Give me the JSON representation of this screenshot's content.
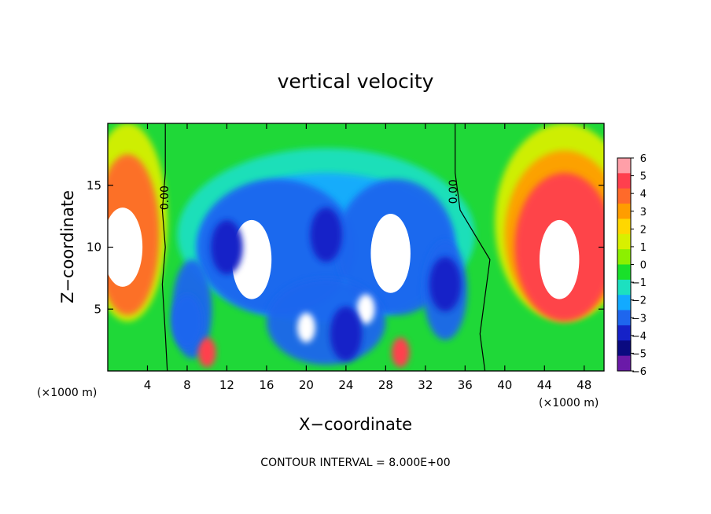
{
  "chart_data": {
    "type": "heatmap",
    "title": "vertical velocity",
    "xlabel": "X−coordinate",
    "ylabel": "Z−coordinate",
    "x_unit": "(×1000 m)",
    "y_unit": "(×1000 m)",
    "x_ticks": [
      4,
      8,
      12,
      16,
      20,
      24,
      28,
      32,
      36,
      40,
      44,
      48
    ],
    "y_ticks": [
      5,
      10,
      15
    ],
    "xlim": [
      0,
      50
    ],
    "ylim": [
      0,
      20
    ],
    "colorbar": {
      "levels": [
        "6",
        "5",
        "4",
        "3",
        "2",
        "1",
        "0",
        "−1",
        "−2",
        "−3",
        "−4",
        "−5",
        "−6"
      ],
      "colors": [
        "#ff9fa8",
        "#ff3f4e",
        "#ff6a2a",
        "#ff9d00",
        "#ffd700",
        "#d8f000",
        "#8cf000",
        "#19e02a",
        "#1ce0c0",
        "#12aaff",
        "#1e66ee",
        "#1522c8",
        "#0a0a80",
        "#6a1aa8"
      ]
    },
    "contour_labels": [
      "0.00",
      "0.00"
    ],
    "contour_interval_text": "CONTOUR INTERVAL = 8.000E+00",
    "features": [
      {
        "kind": "updraft",
        "x": 1.5,
        "z": 10,
        "value": 8
      },
      {
        "kind": "updraft",
        "x": 14.5,
        "z": 9,
        "value": 8
      },
      {
        "kind": "updraft",
        "x": 28.5,
        "z": 9.5,
        "value": 8
      },
      {
        "kind": "updraft",
        "x": 45.5,
        "z": 9,
        "value": 8
      },
      {
        "kind": "updraft",
        "x": 20,
        "z": 3.5,
        "value": 7
      },
      {
        "kind": "updraft",
        "x": 26,
        "z": 5,
        "value": 7
      },
      {
        "kind": "updraft",
        "x": 10,
        "z": 1.5,
        "value": 5
      },
      {
        "kind": "updraft",
        "x": 29.5,
        "z": 1.5,
        "value": 5
      },
      {
        "kind": "downdraft",
        "x": 12,
        "z": 10,
        "value": -5
      },
      {
        "kind": "downdraft",
        "x": 22,
        "z": 11,
        "value": -4.5
      },
      {
        "kind": "downdraft",
        "x": 34,
        "z": 7,
        "value": -5
      },
      {
        "kind": "downdraft",
        "x": 24,
        "z": 3,
        "value": -5
      },
      {
        "kind": "downdraft",
        "x": 8,
        "z": 4,
        "value": -4
      }
    ]
  }
}
